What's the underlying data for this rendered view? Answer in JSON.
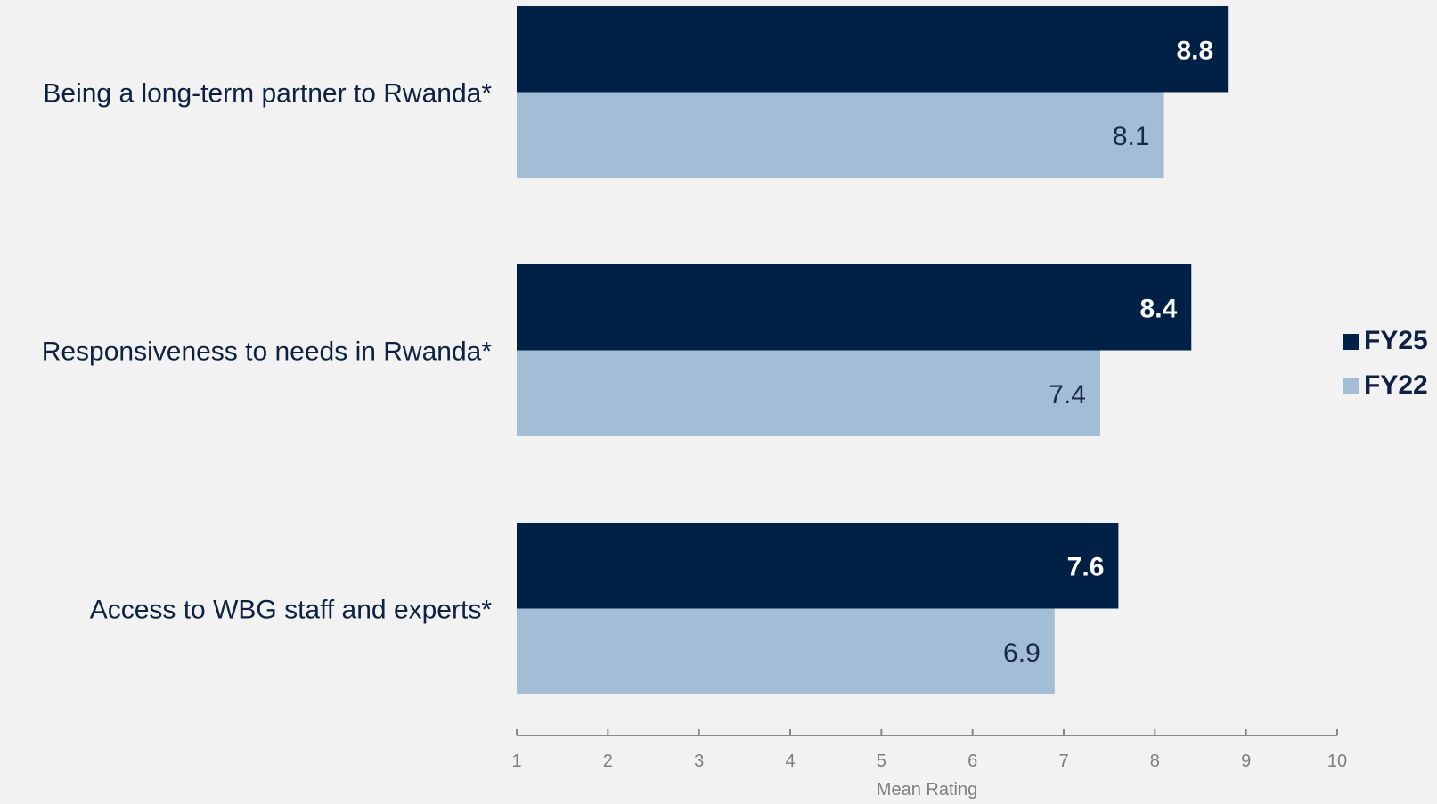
{
  "chart_data": {
    "type": "bar",
    "orientation": "horizontal",
    "categories": [
      "Being a long-term partner to Rwanda*",
      "Responsiveness to needs in Rwanda*",
      "Access to WBG staff and experts*"
    ],
    "series": [
      {
        "name": "FY25",
        "values": [
          8.8,
          8.4,
          7.6
        ],
        "color": "#002145",
        "label_color": "#ffffff",
        "label_bold": true
      },
      {
        "name": "FY22",
        "values": [
          8.1,
          7.4,
          6.9
        ],
        "color": "#a3bdd6",
        "label_color": "#1b2a44",
        "label_bold": false
      }
    ],
    "xlabel": "Mean Rating",
    "ylabel": "",
    "xlim": [
      1,
      10
    ],
    "xticks": [
      1,
      2,
      3,
      4,
      5,
      6,
      7,
      8,
      9,
      10
    ],
    "grid": false,
    "legend_position": "right",
    "colors": {
      "background": "#f2f2f2",
      "category_text": "#0d2242",
      "axis": "#888888",
      "tick_text": "#7f7f7f"
    }
  }
}
